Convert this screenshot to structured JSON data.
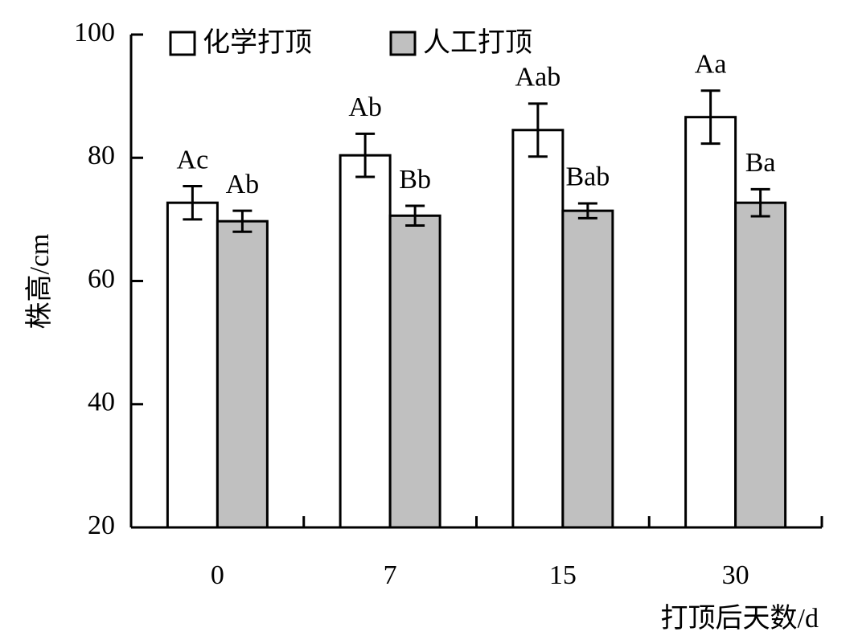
{
  "chart_data": {
    "type": "bar",
    "y_label": "株高/cm",
    "x_label": "打顶后天数/d",
    "categories": [
      "0",
      "7",
      "15",
      "30"
    ],
    "ylim": [
      20,
      100
    ],
    "yticks": [
      20,
      40,
      60,
      80,
      100
    ],
    "series": [
      {
        "name": "化学打顶",
        "color": "#ffffff",
        "values": [
          72.7,
          80.4,
          84.5,
          86.6
        ],
        "errors": [
          2.7,
          3.5,
          4.3,
          4.3
        ],
        "sig_labels": [
          "Ac",
          "Ab",
          "Aab",
          "Aa"
        ]
      },
      {
        "name": "人工打顶",
        "color": "#c0c0c0",
        "values": [
          69.7,
          70.6,
          71.4,
          72.7
        ],
        "errors": [
          1.7,
          1.6,
          1.2,
          2.2
        ],
        "sig_labels": [
          "Ab",
          "Bb",
          "Bab",
          "Ba"
        ]
      }
    ]
  }
}
